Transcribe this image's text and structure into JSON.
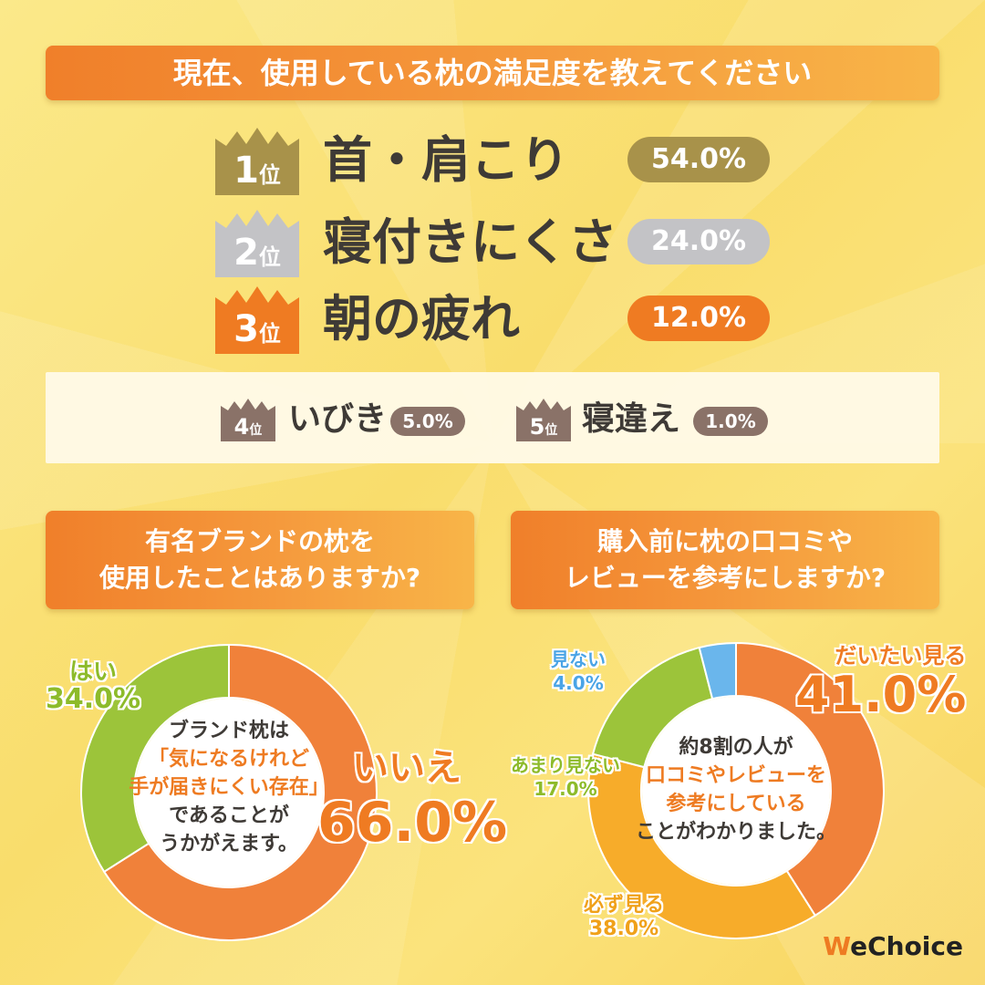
{
  "main_title": "現在、使用している枕の満足度を教えてください",
  "ranking": [
    {
      "rank": "1",
      "rank_suffix": "位",
      "label": "首・肩こり",
      "percent": "54.0%",
      "color": "#a8924a"
    },
    {
      "rank": "2",
      "rank_suffix": "位",
      "label": "寝付きにくさ",
      "percent": "24.0%",
      "color": "#c3c3c6"
    },
    {
      "rank": "3",
      "rank_suffix": "位",
      "label": "朝の疲れ",
      "percent": "12.0%",
      "color": "#ef7b22"
    },
    {
      "rank": "4",
      "rank_suffix": "位",
      "label": "いびき",
      "percent": "5.0%",
      "color": "#8a7268"
    },
    {
      "rank": "5",
      "rank_suffix": "位",
      "label": "寝違え",
      "percent": "1.0%",
      "color": "#8a7268"
    }
  ],
  "question2": {
    "title_lines": [
      "有名ブランドの枕を",
      "使用したことはありますか?"
    ],
    "center_lines": [
      "ブランド枕は",
      "「気になるけれど",
      "手が届きにくい存在」",
      "であることが",
      "うかがえます。"
    ],
    "labels": {
      "yes_name": "はい",
      "yes_value": "34.0%",
      "no_name": "いいえ",
      "no_value": "66.0%"
    }
  },
  "question3": {
    "title_lines": [
      "購入前に枕の口コミや",
      "レビューを参考にしますか?"
    ],
    "center_lines": [
      "約8割の人が",
      "口コミやレビューを",
      "参考にしている",
      "ことがわかりました。"
    ],
    "labels": {
      "a_name": "だいたい見る",
      "a_value": "41.0%",
      "b_name": "必ず見る",
      "b_value": "38.0%",
      "c_name": "あまり見ない",
      "c_value": "17.0%",
      "d_name": "見ない",
      "d_value": "4.0%"
    }
  },
  "logo": {
    "mark": "W",
    "text": "eChoice"
  },
  "chart_data": [
    {
      "type": "bar",
      "title": "現在、使用している枕の満足度を教えてください",
      "categories": [
        "首・肩こり",
        "寝付きにくさ",
        "朝の疲れ",
        "いびき",
        "寝違え"
      ],
      "values": [
        54.0,
        24.0,
        12.0,
        5.0,
        1.0
      ],
      "unit": "%"
    },
    {
      "type": "pie",
      "title": "有名ブランドの枕を使用したことはありますか?",
      "categories": [
        "いいえ",
        "はい"
      ],
      "values": [
        66.0,
        34.0
      ],
      "colors": [
        "#f0813a",
        "#9cc43a"
      ],
      "unit": "%"
    },
    {
      "type": "pie",
      "title": "購入前に枕の口コミやレビューを参考にしますか?",
      "categories": [
        "だいたい見る",
        "必ず見る",
        "あまり見ない",
        "見ない"
      ],
      "values": [
        41.0,
        38.0,
        17.0,
        4.0
      ],
      "colors": [
        "#f0813a",
        "#f7ac2a",
        "#9cc43a",
        "#6ab6ec"
      ],
      "unit": "%"
    }
  ]
}
